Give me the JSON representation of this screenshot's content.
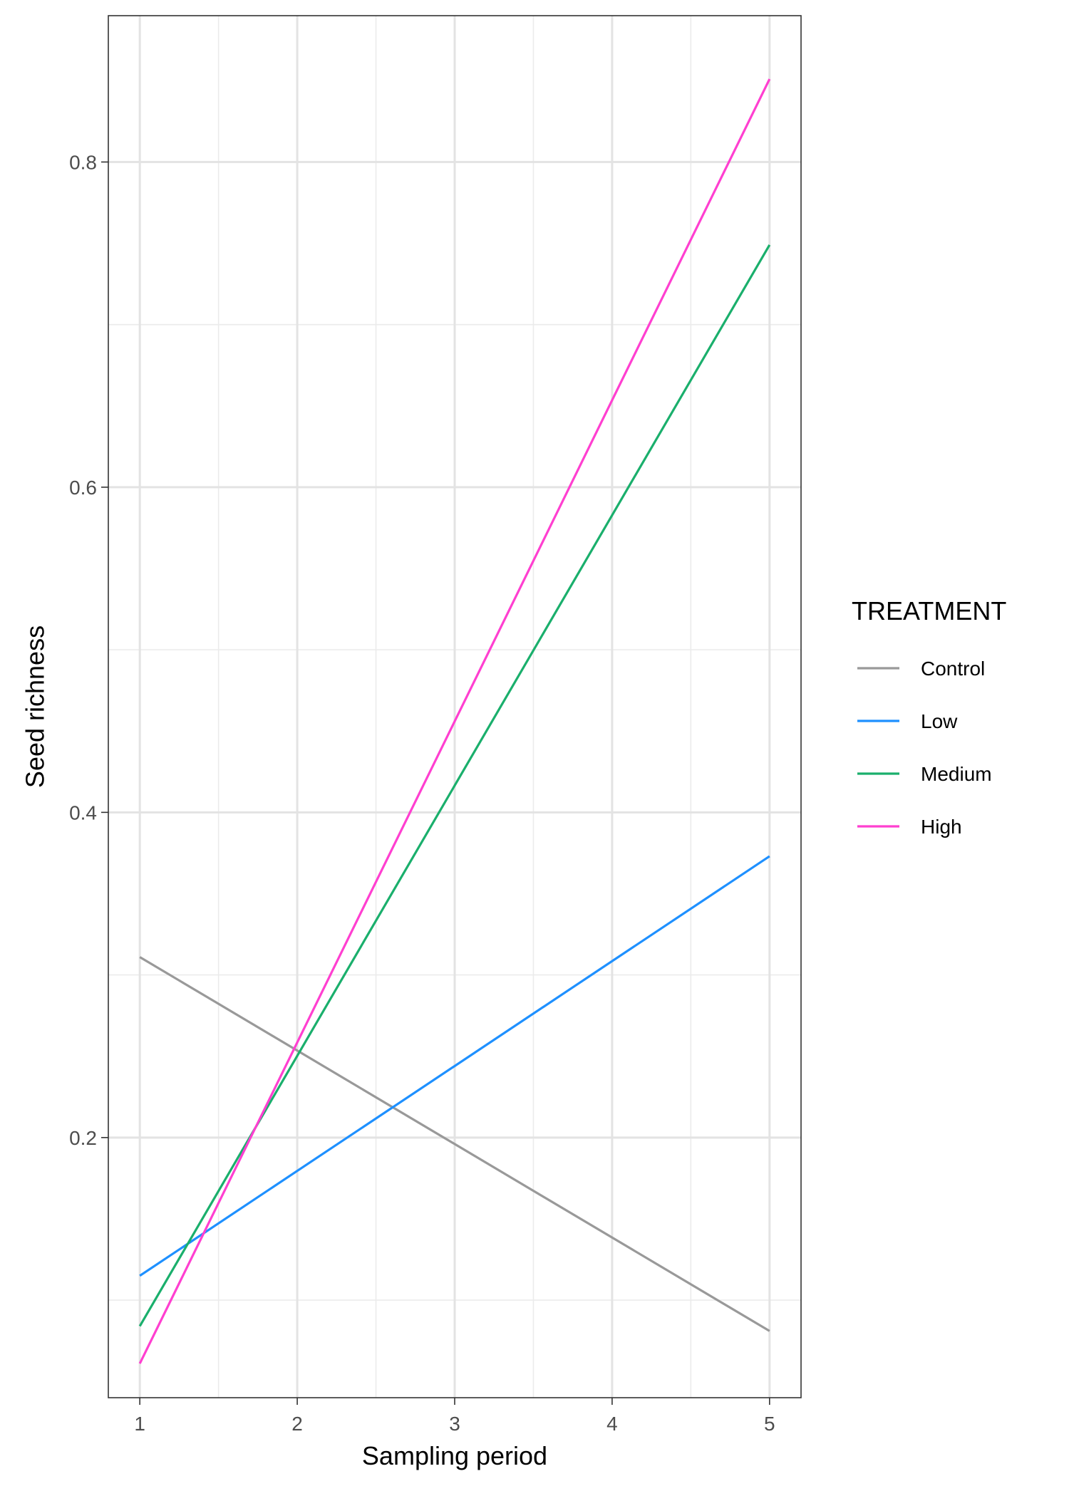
{
  "chart_data": {
    "type": "line",
    "xlabel": "Sampling period",
    "ylabel": "Seed richness",
    "xlim": [
      0.8,
      5.2
    ],
    "ylim": [
      0.04,
      0.89
    ],
    "x_ticks": [
      1,
      2,
      3,
      4,
      5
    ],
    "y_ticks": [
      0.2,
      0.4,
      0.6,
      0.8
    ],
    "y_tick_labels": [
      "0.2",
      "0.4",
      "0.6",
      "0.8"
    ],
    "x_minor": [
      1.5,
      2.5,
      3.5,
      4.5
    ],
    "y_minor": [
      0.1,
      0.3,
      0.5,
      0.7
    ],
    "grid": true,
    "legend_position": "right",
    "legend_title": "TREATMENT",
    "series": [
      {
        "name": "Control",
        "color": "#999999",
        "x": [
          1,
          5
        ],
        "y": [
          0.311,
          0.081
        ]
      },
      {
        "name": "Low",
        "color": "#1E90FF",
        "x": [
          1,
          5
        ],
        "y": [
          0.115,
          0.373
        ]
      },
      {
        "name": "Medium",
        "color": "#1AAF6C",
        "x": [
          1,
          5
        ],
        "y": [
          0.084,
          0.749
        ]
      },
      {
        "name": "High",
        "color": "#FF3FD0",
        "x": [
          1,
          5
        ],
        "y": [
          0.061,
          0.851
        ]
      }
    ]
  }
}
